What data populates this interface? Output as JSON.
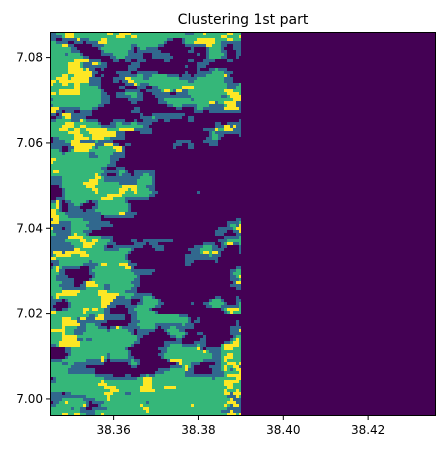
{
  "chart_data": {
    "type": "heatmap",
    "title": "Clustering 1st part",
    "xlabel": "",
    "ylabel": "",
    "xlim": [
      38.345,
      38.436
    ],
    "ylim": [
      6.996,
      7.086
    ],
    "x_ticks": [
      38.36,
      38.38,
      38.4,
      38.42
    ],
    "x_tick_labels": [
      "38.36",
      "38.38",
      "38.40",
      "38.42"
    ],
    "y_ticks": [
      7.0,
      7.02,
      7.04,
      7.06,
      7.08
    ],
    "y_tick_labels": [
      "7.00",
      "7.02",
      "7.04",
      "7.06",
      "7.08"
    ],
    "grid": false,
    "colormap": "viridis",
    "cluster_colors": [
      "#440154",
      "#31688e",
      "#35b779",
      "#fde725"
    ],
    "data_extent_x": [
      38.345,
      38.39
    ],
    "background_cluster": 0,
    "description": "Raster classification map; left portion shows mixed clusters, right portion uniform cluster 0."
  }
}
